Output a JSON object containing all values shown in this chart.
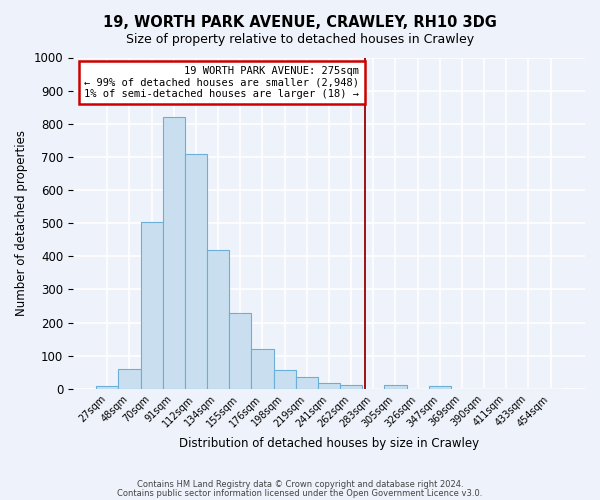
{
  "title": "19, WORTH PARK AVENUE, CRAWLEY, RH10 3DG",
  "subtitle": "Size of property relative to detached houses in Crawley",
  "xlabel": "Distribution of detached houses by size in Crawley",
  "ylabel": "Number of detached properties",
  "bin_labels": [
    "27sqm",
    "48sqm",
    "70sqm",
    "91sqm",
    "112sqm",
    "134sqm",
    "155sqm",
    "176sqm",
    "198sqm",
    "219sqm",
    "241sqm",
    "262sqm",
    "283sqm",
    "305sqm",
    "326sqm",
    "347sqm",
    "369sqm",
    "390sqm",
    "411sqm",
    "433sqm",
    "454sqm"
  ],
  "bar_values": [
    8,
    60,
    505,
    820,
    710,
    420,
    230,
    120,
    58,
    35,
    18,
    11,
    0,
    11,
    0,
    10,
    0,
    0,
    0,
    0,
    0
  ],
  "bar_color": "#c9dff0",
  "bar_edge_color": "#6baed6",
  "ylim": [
    0,
    1000
  ],
  "yticks": [
    0,
    100,
    200,
    300,
    400,
    500,
    600,
    700,
    800,
    900,
    1000
  ],
  "marker_line_color": "#990000",
  "annotation_title": "19 WORTH PARK AVENUE: 275sqm",
  "annotation_line1": "← 99% of detached houses are smaller (2,948)",
  "annotation_line2": "1% of semi-detached houses are larger (18) →",
  "annotation_box_color": "#ffffff",
  "annotation_box_edge": "#cc0000",
  "background_color": "#eef2fa",
  "grid_color": "#ffffff",
  "footer1": "Contains HM Land Registry data © Crown copyright and database right 2024.",
  "footer2": "Contains public sector information licensed under the Open Government Licence v3.0."
}
